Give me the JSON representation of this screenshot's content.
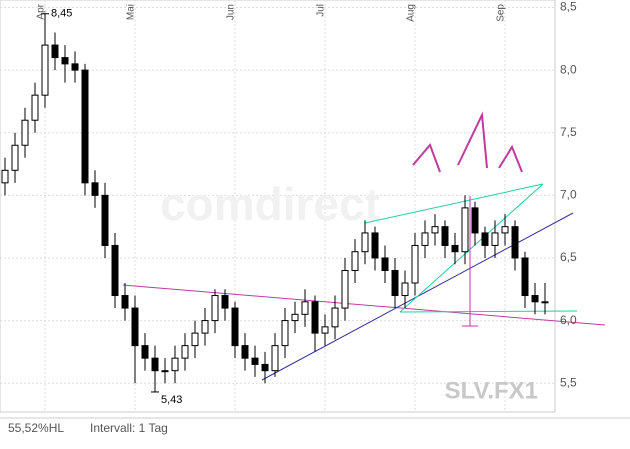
{
  "chart_data": {
    "type": "candlestick",
    "symbol": "SLV.FX1",
    "watermark": "comdirect",
    "footer_left": "55,52%HL",
    "footer_right": "Intervall: 1 Tag",
    "annotations": [
      {
        "text": "8,45",
        "index": 4,
        "value": 8.45
      },
      {
        "text": "5,43",
        "index": 15,
        "value": 5.43
      }
    ],
    "categories": [
      null,
      null,
      null,
      null,
      "Apr",
      null,
      null,
      null,
      null,
      null,
      null,
      null,
      null,
      "Mai",
      null,
      null,
      null,
      null,
      null,
      null,
      null,
      null,
      null,
      "Jun",
      null,
      null,
      null,
      null,
      null,
      null,
      null,
      null,
      "Jul",
      null,
      null,
      null,
      null,
      null,
      null,
      null,
      null,
      "Aug",
      null,
      null,
      null,
      null,
      null,
      null,
      null,
      null,
      "Sep",
      null,
      null,
      null,
      null
    ],
    "open": [
      7.1,
      7.2,
      7.4,
      7.6,
      7.8,
      8.2,
      8.1,
      8.05,
      8.0,
      7.1,
      7.0,
      6.6,
      6.2,
      6.1,
      5.8,
      5.7,
      5.6,
      5.6,
      5.7,
      5.8,
      5.9,
      6.0,
      6.2,
      6.1,
      5.8,
      5.7,
      5.65,
      5.6,
      5.8,
      6.0,
      6.05,
      6.15,
      5.9,
      5.95,
      6.1,
      6.4,
      6.55,
      6.7,
      6.5,
      6.4,
      6.2,
      6.3,
      6.6,
      6.7,
      6.75,
      6.6,
      6.55,
      6.9,
      6.7,
      6.6,
      6.7,
      6.75,
      6.5,
      6.2,
      6.15
    ],
    "high": [
      7.3,
      7.5,
      7.7,
      7.9,
      8.45,
      8.3,
      8.2,
      8.15,
      8.05,
      7.2,
      7.1,
      6.7,
      6.3,
      6.2,
      5.9,
      5.8,
      5.7,
      5.8,
      5.9,
      6.0,
      6.1,
      6.25,
      6.25,
      6.15,
      5.9,
      5.8,
      5.75,
      5.9,
      6.1,
      6.15,
      6.25,
      6.2,
      6.05,
      6.2,
      6.5,
      6.65,
      6.8,
      6.75,
      6.6,
      6.5,
      6.4,
      6.7,
      6.8,
      6.85,
      6.8,
      6.7,
      7.0,
      6.95,
      6.75,
      6.8,
      6.85,
      6.8,
      6.55,
      6.3,
      6.3
    ],
    "low": [
      7.0,
      7.1,
      7.3,
      7.5,
      7.7,
      8.0,
      7.9,
      7.9,
      7.0,
      6.9,
      6.5,
      6.1,
      6.0,
      5.5,
      5.6,
      5.43,
      5.5,
      5.5,
      5.6,
      5.7,
      5.8,
      5.9,
      6.0,
      5.7,
      5.6,
      5.55,
      5.5,
      5.55,
      5.7,
      5.9,
      5.95,
      5.75,
      5.8,
      5.85,
      6.0,
      6.3,
      6.45,
      6.4,
      6.3,
      6.1,
      6.1,
      6.2,
      6.5,
      6.6,
      6.5,
      6.45,
      6.45,
      6.6,
      6.5,
      6.5,
      6.6,
      6.4,
      6.1,
      6.05,
      6.05
    ],
    "close": [
      7.2,
      7.4,
      7.6,
      7.8,
      8.2,
      8.1,
      8.05,
      8.0,
      7.1,
      7.0,
      6.6,
      6.2,
      6.1,
      5.8,
      5.7,
      5.6,
      5.6,
      5.7,
      5.8,
      5.9,
      6.0,
      6.2,
      6.1,
      5.8,
      5.7,
      5.65,
      5.6,
      5.8,
      6.0,
      6.05,
      6.15,
      5.9,
      5.95,
      6.1,
      6.4,
      6.55,
      6.7,
      6.5,
      6.4,
      6.2,
      6.3,
      6.6,
      6.7,
      6.75,
      6.6,
      6.55,
      6.9,
      6.7,
      6.6,
      6.7,
      6.75,
      6.5,
      6.2,
      6.15,
      6.15
    ],
    "ylim": [
      5.27,
      8.56
    ],
    "yticks": [
      {
        "value": 5.5,
        "label": "5,5"
      },
      {
        "value": 6.0,
        "label": "6,0"
      },
      {
        "value": 6.5,
        "label": "6,5"
      },
      {
        "value": 7.0,
        "label": "7,0"
      },
      {
        "value": 7.5,
        "label": "7,5"
      },
      {
        "value": 8.0,
        "label": "8,0"
      },
      {
        "value": 8.5,
        "label": "8,5"
      }
    ],
    "grid": true
  }
}
